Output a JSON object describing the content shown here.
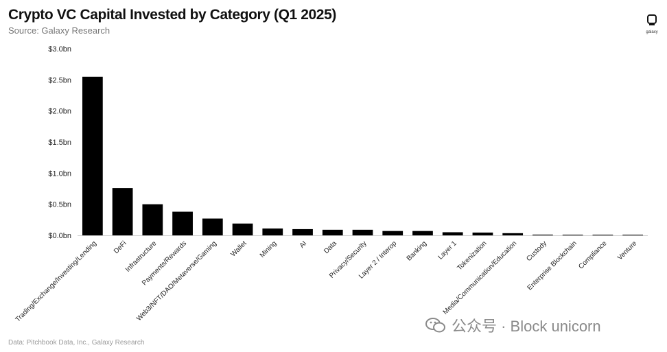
{
  "title": "Crypto VC Capital Invested by Category (Q1 2025)",
  "subtitle": "Source: Galaxy Research",
  "logo": {
    "text": "galaxy",
    "icon": "galaxy-logo-icon"
  },
  "footer": "Data: Pitchbook Data, Inc., Galaxy Research",
  "watermark": {
    "text": "公众号 · Block unicorn",
    "icon": "wechat-icon"
  },
  "colors": {
    "bar": "#000000",
    "axis": "#cccccc",
    "text": "#111111"
  },
  "chart_data": {
    "type": "bar",
    "title": "Crypto VC Capital Invested by Category (Q1 2025)",
    "xlabel": "",
    "ylabel": "",
    "ylim": [
      0,
      3.0
    ],
    "y_ticks": [
      0,
      0.5,
      1.0,
      1.5,
      2.0,
      2.5,
      3.0
    ],
    "y_tick_labels": [
      "$0.0bn",
      "$0.5bn",
      "$1.0bn",
      "$1.5bn",
      "$2.0bn",
      "$2.5bn",
      "$3.0bn"
    ],
    "grid": false,
    "categories": [
      "Trading/Exchange/Investing/Lending",
      "DeFi",
      "Infrastructure",
      "Payments/Rewards",
      "Web3/NFT/DAO/Metaverse/Gaming",
      "Wallet",
      "Mining",
      "AI",
      "Data",
      "Privacy/Security",
      "Layer 2 / Interop",
      "Banking",
      "Layer 1",
      "Tokenization",
      "Media/Communication/Education",
      "Custody",
      "Enterprise Blockchain",
      "Compliance",
      "Venture"
    ],
    "values": [
      2.55,
      0.76,
      0.5,
      0.38,
      0.27,
      0.19,
      0.11,
      0.1,
      0.09,
      0.09,
      0.07,
      0.07,
      0.05,
      0.045,
      0.035,
      0.012,
      0.008,
      0.006,
      0.004
    ]
  }
}
